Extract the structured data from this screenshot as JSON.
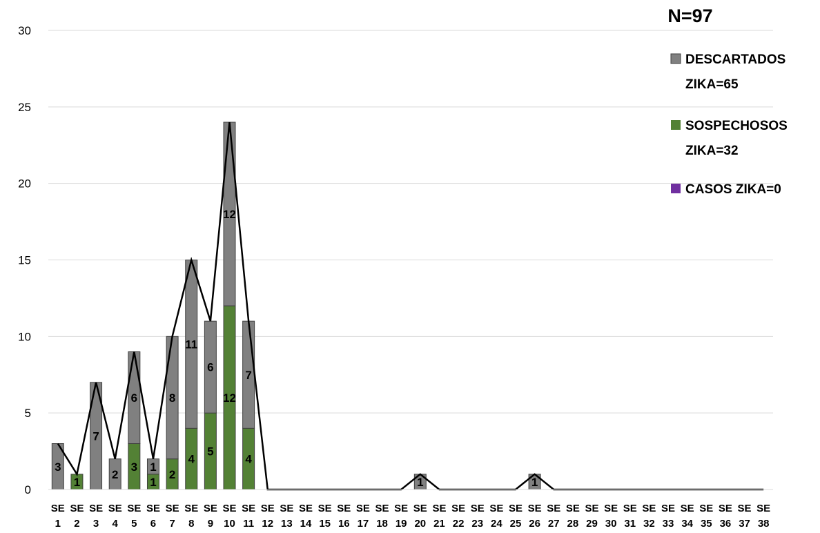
{
  "chart_data": {
    "type": "bar",
    "stacked": true,
    "title": "N=97",
    "categories": [
      [
        "SE",
        "1"
      ],
      [
        "SE",
        "2"
      ],
      [
        "SE",
        "3"
      ],
      [
        "SE",
        "4"
      ],
      [
        "SE",
        "5"
      ],
      [
        "SE",
        "6"
      ],
      [
        "SE",
        "7"
      ],
      [
        "SE",
        "8"
      ],
      [
        "SE",
        "9"
      ],
      [
        "SE",
        "10"
      ],
      [
        "SE",
        "11"
      ],
      [
        "SE",
        "12"
      ],
      [
        "SE",
        "13"
      ],
      [
        "SE",
        "14"
      ],
      [
        "SE",
        "15"
      ],
      [
        "SE",
        "16"
      ],
      [
        "SE",
        "17"
      ],
      [
        "SE",
        "18"
      ],
      [
        "SE",
        "19"
      ],
      [
        "SE",
        "20"
      ],
      [
        "SE",
        "21"
      ],
      [
        "SE",
        "22"
      ],
      [
        "SE",
        "23"
      ],
      [
        "SE",
        "24"
      ],
      [
        "SE",
        "25"
      ],
      [
        "SE",
        "26"
      ],
      [
        "SE",
        "27"
      ],
      [
        "SE",
        "28"
      ],
      [
        "SE",
        "29"
      ],
      [
        "SE",
        "30"
      ],
      [
        "SE",
        "31"
      ],
      [
        "SE",
        "32"
      ],
      [
        "SE",
        "33"
      ],
      [
        "SE",
        "34"
      ],
      [
        "SE",
        "35"
      ],
      [
        "SE",
        "36"
      ],
      [
        "SE",
        "37"
      ],
      [
        "SE",
        "38"
      ]
    ],
    "series": [
      {
        "name": "CASOS ZIKA=0",
        "color": "#7030a0",
        "values": [
          0,
          0,
          0,
          0,
          0,
          0,
          0,
          0,
          0,
          0,
          0,
          0,
          0,
          0,
          0,
          0,
          0,
          0,
          0,
          0,
          0,
          0,
          0,
          0,
          0,
          0,
          0,
          0,
          0,
          0,
          0,
          0,
          0,
          0,
          0,
          0,
          0,
          0
        ]
      },
      {
        "name": "SOSPECHOSOS ZIKA=32",
        "color": "#538135",
        "values": [
          0,
          1,
          0,
          0,
          3,
          1,
          2,
          4,
          5,
          12,
          4,
          0,
          0,
          0,
          0,
          0,
          0,
          0,
          0,
          0,
          0,
          0,
          0,
          0,
          0,
          0,
          0,
          0,
          0,
          0,
          0,
          0,
          0,
          0,
          0,
          0,
          0,
          0
        ]
      },
      {
        "name": "DESCARTADOS ZIKA=65",
        "color": "#808080",
        "values": [
          3,
          0,
          7,
          2,
          6,
          1,
          8,
          11,
          6,
          12,
          7,
          0,
          0,
          0,
          0,
          0,
          0,
          0,
          0,
          1,
          0,
          0,
          0,
          0,
          0,
          1,
          0,
          0,
          0,
          0,
          0,
          0,
          0,
          0,
          0,
          0,
          0,
          0
        ]
      }
    ],
    "total_line": {
      "color": "#000000",
      "values": [
        3,
        1,
        7,
        2,
        9,
        2,
        10,
        15,
        11,
        24,
        11,
        0,
        0,
        0,
        0,
        0,
        0,
        0,
        0,
        1,
        0,
        0,
        0,
        0,
        0,
        1,
        0,
        0,
        0,
        0,
        0,
        0,
        0,
        0,
        0,
        0,
        0,
        0
      ]
    },
    "yticks": [
      "0",
      "5",
      "10",
      "15",
      "20",
      "25",
      "30"
    ],
    "ylim": [
      0,
      30
    ],
    "grid": true,
    "legend": {
      "placement": "right",
      "order": [
        2,
        1,
        0
      ],
      "lines": [
        [
          "DESCARTADOS",
          "ZIKA=65"
        ],
        [
          "SOSPECHOSOS",
          "ZIKA=32"
        ],
        [
          "CASOS ZIKA=0"
        ]
      ]
    }
  }
}
